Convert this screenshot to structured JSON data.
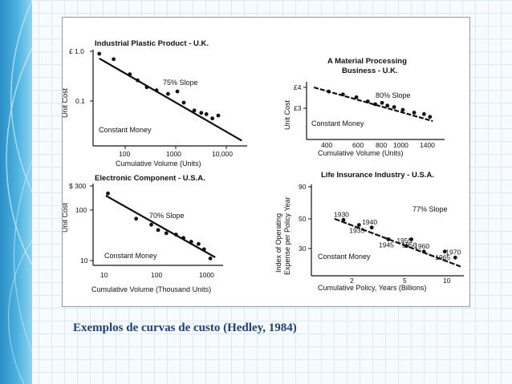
{
  "caption": "Exemplos de curvas de custo (Hedley, 1984)",
  "colors": {
    "caption": "#1f3e7a",
    "sidebar": "#3aa2d6",
    "ink": "#111111"
  },
  "chart_data": [
    {
      "type": "scatter",
      "title": "Industrial Plastic Product - U.K.",
      "ylabel": "Unit Cost",
      "xlabel": "Cumulative Volume (Units)",
      "x_scale": "log",
      "y_scale": "log",
      "xlim": [
        20,
        30000
      ],
      "ylim": [
        0.035,
        1.1
      ],
      "x_ticks": [
        100,
        1000,
        10000
      ],
      "x_tick_labels": [
        "100",
        "1000",
        "10,000"
      ],
      "y_ticks": [
        1.0,
        0.1
      ],
      "y_tick_labels": [
        "£ 1.0",
        "0.1"
      ],
      "slope_label": "75% Slope",
      "note": "Constant Money",
      "trend": [
        [
          25,
          0.8
        ],
        [
          25000,
          0.04
        ]
      ],
      "points": [
        [
          25,
          0.95
        ],
        [
          50,
          0.78
        ],
        [
          110,
          0.45
        ],
        [
          160,
          0.36
        ],
        [
          250,
          0.28
        ],
        [
          400,
          0.25
        ],
        [
          700,
          0.22
        ],
        [
          1100,
          0.24
        ],
        [
          1500,
          0.16
        ],
        [
          2500,
          0.12
        ],
        [
          3500,
          0.11
        ],
        [
          4500,
          0.105
        ],
        [
          6000,
          0.09
        ],
        [
          8000,
          0.1
        ]
      ]
    },
    {
      "type": "scatter",
      "title": "A Material Processing Business - U.K.",
      "ylabel": "Unit Cost",
      "xlabel": "Cumulative Volume (Units)",
      "x_scale": "log",
      "y_scale": "linear",
      "xlim": [
        250,
        1550
      ],
      "ylim": [
        2.3,
        4.3
      ],
      "x_ticks": [
        400,
        600,
        800,
        1000,
        1400
      ],
      "x_tick_labels": [
        "400",
        "600",
        "800",
        "1000",
        "1400"
      ],
      "y_ticks": [
        4,
        3
      ],
      "y_tick_labels": [
        "£4",
        "£3"
      ],
      "slope_label": "80% Slope",
      "note": "Constant Money",
      "trend": [
        [
          270,
          4.1
        ],
        [
          1350,
          2.9
        ]
      ],
      "points": [
        [
          330,
          3.95
        ],
        [
          400,
          3.85
        ],
        [
          480,
          3.75
        ],
        [
          560,
          3.6
        ],
        [
          620,
          3.5
        ],
        [
          680,
          3.55
        ],
        [
          730,
          3.45
        ],
        [
          800,
          3.4
        ],
        [
          900,
          3.3
        ],
        [
          1050,
          3.2
        ],
        [
          1200,
          3.15
        ],
        [
          1300,
          3.05
        ]
      ]
    },
    {
      "type": "scatter",
      "title": "Electronic Component - U.S.A.",
      "ylabel": "Unit Cost",
      "xlabel": "Cumulative Volume (Thousand Units)",
      "x_scale": "log",
      "y_scale": "log",
      "xlim": [
        6,
        2000
      ],
      "ylim": [
        7,
        320
      ],
      "x_ticks": [
        10,
        100,
        1000
      ],
      "x_tick_labels": [
        "10",
        "100",
        "1000"
      ],
      "y_ticks": [
        300,
        100,
        10
      ],
      "y_tick_labels": [
        "$ 300",
        "100",
        "10"
      ],
      "slope_label": "70% Slope",
      "note": "Constant Money",
      "trend": [
        [
          10,
          180
        ],
        [
          1500,
          9.5
        ]
      ],
      "points": [
        [
          11,
          200
        ],
        [
          40,
          60
        ],
        [
          80,
          45
        ],
        [
          110,
          35
        ],
        [
          160,
          30
        ],
        [
          250,
          28
        ],
        [
          350,
          24
        ],
        [
          500,
          20
        ],
        [
          700,
          18
        ],
        [
          900,
          14
        ],
        [
          1200,
          9
        ]
      ]
    },
    {
      "type": "scatter",
      "title": "Life Insurance Industry - U.S.A.",
      "ylabel": "Index of Operating Expense per Policy Year",
      "xlabel": "Cumulative Policy,  Years (Billions)",
      "x_scale": "log",
      "y_scale": "log",
      "xlim": [
        0.6,
        14.5
      ],
      "ylim": [
        25,
        95
      ],
      "x_ticks": [
        2,
        5,
        10
      ],
      "x_tick_labels": [
        "2",
        "5",
        "10"
      ],
      "y_ticks": [
        90,
        50,
        30
      ],
      "y_tick_labels": [
        "90",
        "50",
        "30"
      ],
      "slope_label": "77% Slope",
      "note": "Constant Money",
      "trend": [
        [
          0.95,
          57
        ],
        [
          14,
          28
        ]
      ],
      "points": [
        {
          "x": 1.15,
          "y": 56,
          "label": "1930"
        },
        {
          "x": 1.6,
          "y": 52,
          "label": "1935"
        },
        {
          "x": 2.1,
          "y": 50,
          "label": "1940"
        },
        {
          "x": 3.0,
          "y": 42,
          "label": "1945"
        },
        {
          "x": 4.4,
          "y": 38,
          "label": "1955"
        },
        {
          "x": 4.9,
          "y": 42,
          "label": "1950"
        },
        {
          "x": 6.4,
          "y": 35,
          "label": "1960"
        },
        {
          "x": 10.0,
          "y": 35,
          "label": "1965"
        },
        {
          "x": 12.5,
          "y": 32,
          "label": "1970"
        }
      ]
    }
  ]
}
